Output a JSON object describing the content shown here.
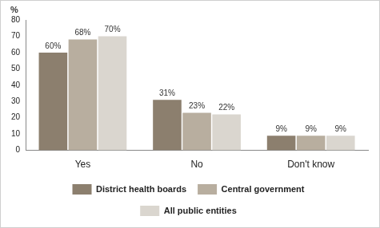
{
  "chart_data": {
    "type": "bar",
    "ylabel": "%",
    "categories": [
      "Yes",
      "No",
      "Don't know"
    ],
    "series": [
      {
        "name": "District health boards",
        "color": "#8c7f6e",
        "values": [
          60,
          31,
          9
        ],
        "value_labels": [
          "60%",
          "31%",
          "9%"
        ]
      },
      {
        "name": "Central government",
        "color": "#b8ae9f",
        "values": [
          68,
          23,
          9
        ],
        "value_labels": [
          "68%",
          "23%",
          "9%"
        ]
      },
      {
        "name": "All public entities",
        "color": "#dad6cf",
        "values": [
          70,
          22,
          9
        ],
        "value_labels": [
          "70%",
          "22%",
          "9%"
        ]
      }
    ],
    "ylim": [
      0,
      80
    ],
    "yticks": [
      0,
      10,
      20,
      30,
      40,
      50,
      60,
      70,
      80
    ],
    "grid": false,
    "legend": "bottom",
    "data_labels": true
  }
}
